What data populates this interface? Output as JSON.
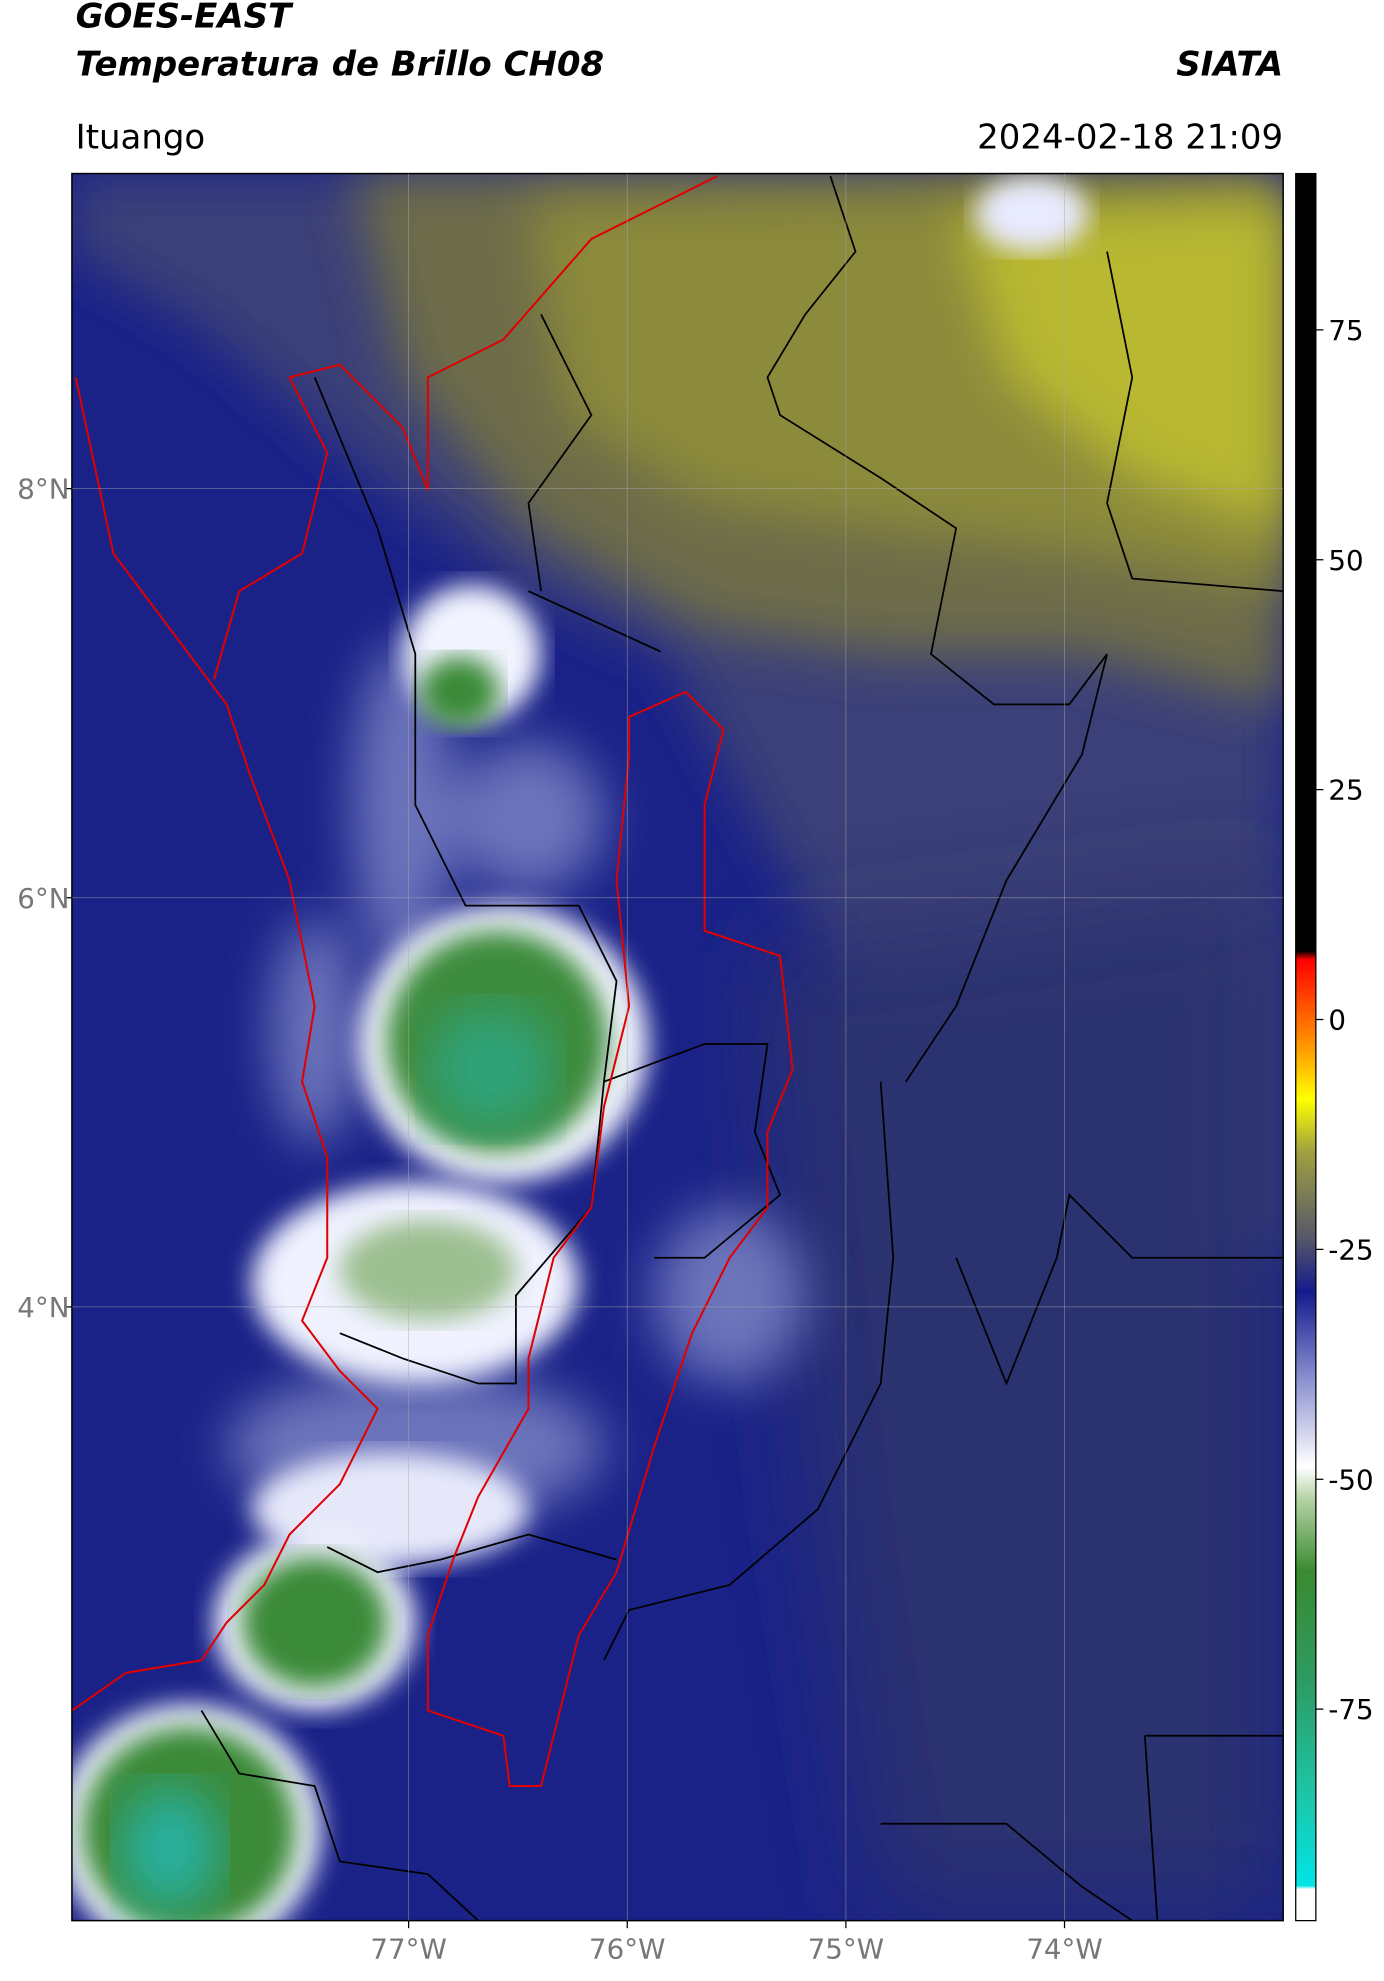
{
  "header": {
    "title": "GOES-EAST",
    "subtitle": "Temperatura de Brillo CH08",
    "source": "SIATA",
    "region": "Ituango",
    "datetime": "2024-02-18 21:09"
  },
  "map": {
    "lon_lim": [
      -78.54,
      -73.0
    ],
    "lat_lim": [
      1.0,
      9.54
    ],
    "lon_ticks": [
      {
        "value": -77,
        "label": "77°W"
      },
      {
        "value": -76,
        "label": "76°W"
      },
      {
        "value": -75,
        "label": "75°W"
      },
      {
        "value": -74,
        "label": "74°W"
      }
    ],
    "lat_ticks": [
      {
        "value": 8,
        "label": "8°N"
      },
      {
        "value": 6,
        "label": "6°N"
      },
      {
        "value": 4,
        "label": "4°N"
      }
    ]
  },
  "colorbar": {
    "lim": [
      -98,
      92
    ],
    "ticks": [
      75,
      50,
      25,
      0,
      -25,
      -50,
      -75
    ]
  }
}
